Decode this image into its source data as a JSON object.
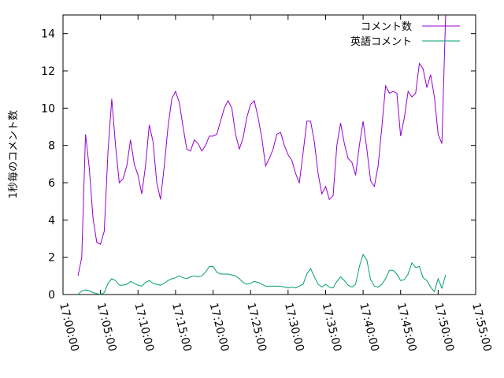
{
  "chart_data": {
    "type": "line",
    "title": "",
    "xlabel": "",
    "ylabel": "1秒毎のコメント数",
    "ylim": [
      0,
      15
    ],
    "xlim": [
      "17:00:00",
      "17:55:00"
    ],
    "yticks": [
      0,
      2,
      4,
      6,
      8,
      10,
      12,
      14
    ],
    "xticks": [
      "17:00:00",
      "17:05:00",
      "17:10:00",
      "17:15:00",
      "17:20:00",
      "17:25:00",
      "17:30:00",
      "17:35:00",
      "17:40:00",
      "17:45:00",
      "17:50:00",
      "17:55:00"
    ],
    "grid": false,
    "legend_position": "top-right",
    "series": [
      {
        "name": "コメント数",
        "color": "#9400d3",
        "points": [
          [
            "17:02:00",
            1.0
          ],
          [
            "17:02:30",
            2.0
          ],
          [
            "17:03:00",
            8.6
          ],
          [
            "17:03:30",
            6.8
          ],
          [
            "17:04:00",
            4.1
          ],
          [
            "17:04:30",
            2.8
          ],
          [
            "17:05:00",
            2.7
          ],
          [
            "17:05:30",
            3.4
          ],
          [
            "17:06:00",
            7.7
          ],
          [
            "17:06:30",
            10.5
          ],
          [
            "17:07:00",
            8.0
          ],
          [
            "17:07:30",
            6.0
          ],
          [
            "17:08:00",
            6.2
          ],
          [
            "17:08:30",
            6.9
          ],
          [
            "17:09:00",
            8.3
          ],
          [
            "17:09:30",
            7.0
          ],
          [
            "17:10:00",
            6.4
          ],
          [
            "17:10:30",
            5.4
          ],
          [
            "17:11:00",
            6.9
          ],
          [
            "17:11:30",
            9.1
          ],
          [
            "17:12:00",
            8.2
          ],
          [
            "17:12:30",
            6.0
          ],
          [
            "17:13:00",
            5.1
          ],
          [
            "17:13:30",
            6.9
          ],
          [
            "17:14:00",
            9.0
          ],
          [
            "17:14:30",
            10.5
          ],
          [
            "17:15:00",
            10.9
          ],
          [
            "17:15:30",
            10.3
          ],
          [
            "17:16:00",
            9.0
          ],
          [
            "17:16:30",
            7.8
          ],
          [
            "17:17:00",
            7.7
          ],
          [
            "17:17:30",
            8.3
          ],
          [
            "17:18:00",
            8.1
          ],
          [
            "17:18:30",
            7.7
          ],
          [
            "17:19:00",
            8.0
          ],
          [
            "17:19:30",
            8.5
          ],
          [
            "17:20:00",
            8.5
          ],
          [
            "17:20:30",
            8.6
          ],
          [
            "17:21:00",
            9.3
          ],
          [
            "17:21:30",
            10.0
          ],
          [
            "17:22:00",
            10.4
          ],
          [
            "17:22:30",
            10.0
          ],
          [
            "17:23:00",
            8.6
          ],
          [
            "17:23:30",
            7.8
          ],
          [
            "17:24:00",
            8.4
          ],
          [
            "17:24:30",
            9.5
          ],
          [
            "17:25:00",
            10.2
          ],
          [
            "17:25:30",
            10.4
          ],
          [
            "17:26:00",
            9.5
          ],
          [
            "17:26:30",
            8.4
          ],
          [
            "17:27:00",
            6.9
          ],
          [
            "17:27:30",
            7.3
          ],
          [
            "17:28:00",
            7.8
          ],
          [
            "17:28:30",
            8.6
          ],
          [
            "17:29:00",
            8.7
          ],
          [
            "17:29:30",
            8.0
          ],
          [
            "17:30:00",
            7.5
          ],
          [
            "17:30:30",
            7.2
          ],
          [
            "17:31:00",
            6.5
          ],
          [
            "17:31:30",
            6.0
          ],
          [
            "17:32:00",
            7.6
          ],
          [
            "17:32:30",
            9.3
          ],
          [
            "17:33:00",
            9.3
          ],
          [
            "17:33:30",
            8.2
          ],
          [
            "17:34:00",
            6.5
          ],
          [
            "17:34:30",
            5.4
          ],
          [
            "17:35:00",
            5.8
          ],
          [
            "17:35:30",
            5.1
          ],
          [
            "17:36:00",
            5.3
          ],
          [
            "17:36:30",
            8.0
          ],
          [
            "17:37:00",
            9.2
          ],
          [
            "17:37:30",
            8.1
          ],
          [
            "17:38:00",
            7.3
          ],
          [
            "17:38:30",
            7.1
          ],
          [
            "17:39:00",
            6.4
          ],
          [
            "17:39:30",
            8.0
          ],
          [
            "17:40:00",
            9.3
          ],
          [
            "17:40:30",
            7.8
          ],
          [
            "17:41:00",
            6.1
          ],
          [
            "17:41:30",
            5.8
          ],
          [
            "17:42:00",
            6.9
          ],
          [
            "17:42:30",
            9.0
          ],
          [
            "17:43:00",
            11.2
          ],
          [
            "17:43:30",
            10.8
          ],
          [
            "17:44:00",
            10.9
          ],
          [
            "17:44:30",
            10.8
          ],
          [
            "17:45:00",
            8.5
          ],
          [
            "17:45:30",
            9.5
          ],
          [
            "17:46:00",
            10.9
          ],
          [
            "17:46:30",
            10.6
          ],
          [
            "17:47:00",
            10.8
          ],
          [
            "17:47:30",
            12.4
          ],
          [
            "17:48:00",
            12.1
          ],
          [
            "17:48:30",
            11.1
          ],
          [
            "17:49:00",
            11.8
          ],
          [
            "17:49:30",
            10.6
          ],
          [
            "17:50:00",
            8.6
          ],
          [
            "17:50:30",
            8.1
          ],
          [
            "17:51:00",
            15.0
          ]
        ]
      },
      {
        "name": "英語コメント",
        "color": "#009e73",
        "points": [
          [
            "17:02:00",
            0.0
          ],
          [
            "17:02:30",
            0.2
          ],
          [
            "17:03:00",
            0.25
          ],
          [
            "17:03:30",
            0.2
          ],
          [
            "17:04:00",
            0.1
          ],
          [
            "17:04:30",
            0.05
          ],
          [
            "17:05:00",
            0.0
          ],
          [
            "17:05:30",
            0.1
          ],
          [
            "17:06:00",
            0.6
          ],
          [
            "17:06:30",
            0.85
          ],
          [
            "17:07:00",
            0.75
          ],
          [
            "17:07:30",
            0.5
          ],
          [
            "17:08:00",
            0.5
          ],
          [
            "17:08:30",
            0.55
          ],
          [
            "17:09:00",
            0.7
          ],
          [
            "17:09:30",
            0.6
          ],
          [
            "17:10:00",
            0.5
          ],
          [
            "17:10:30",
            0.45
          ],
          [
            "17:11:00",
            0.65
          ],
          [
            "17:11:30",
            0.75
          ],
          [
            "17:12:00",
            0.6
          ],
          [
            "17:12:30",
            0.55
          ],
          [
            "17:13:00",
            0.5
          ],
          [
            "17:13:30",
            0.6
          ],
          [
            "17:14:00",
            0.75
          ],
          [
            "17:14:30",
            0.85
          ],
          [
            "17:15:00",
            0.9
          ],
          [
            "17:15:30",
            1.0
          ],
          [
            "17:16:00",
            0.9
          ],
          [
            "17:16:30",
            0.85
          ],
          [
            "17:17:00",
            0.95
          ],
          [
            "17:17:30",
            1.0
          ],
          [
            "17:18:00",
            0.95
          ],
          [
            "17:18:30",
            1.0
          ],
          [
            "17:19:00",
            1.2
          ],
          [
            "17:19:30",
            1.5
          ],
          [
            "17:20:00",
            1.5
          ],
          [
            "17:20:30",
            1.2
          ],
          [
            "17:21:00",
            1.1
          ],
          [
            "17:21:30",
            1.1
          ],
          [
            "17:22:00",
            1.1
          ],
          [
            "17:22:30",
            1.05
          ],
          [
            "17:23:00",
            1.0
          ],
          [
            "17:23:30",
            0.85
          ],
          [
            "17:24:00",
            0.65
          ],
          [
            "17:24:30",
            0.55
          ],
          [
            "17:25:00",
            0.6
          ],
          [
            "17:25:30",
            0.7
          ],
          [
            "17:26:00",
            0.65
          ],
          [
            "17:26:30",
            0.55
          ],
          [
            "17:27:00",
            0.45
          ],
          [
            "17:27:30",
            0.45
          ],
          [
            "17:28:00",
            0.45
          ],
          [
            "17:28:30",
            0.45
          ],
          [
            "17:29:00",
            0.45
          ],
          [
            "17:29:30",
            0.4
          ],
          [
            "17:30:00",
            0.35
          ],
          [
            "17:30:30",
            0.4
          ],
          [
            "17:31:00",
            0.35
          ],
          [
            "17:31:30",
            0.45
          ],
          [
            "17:32:00",
            0.55
          ],
          [
            "17:32:30",
            1.1
          ],
          [
            "17:33:00",
            1.4
          ],
          [
            "17:33:30",
            0.95
          ],
          [
            "17:34:00",
            0.55
          ],
          [
            "17:34:30",
            0.4
          ],
          [
            "17:35:00",
            0.55
          ],
          [
            "17:35:30",
            0.4
          ],
          [
            "17:36:00",
            0.35
          ],
          [
            "17:36:30",
            0.7
          ],
          [
            "17:37:00",
            0.95
          ],
          [
            "17:37:30",
            0.75
          ],
          [
            "17:38:00",
            0.5
          ],
          [
            "17:38:30",
            0.4
          ],
          [
            "17:39:00",
            0.55
          ],
          [
            "17:39:30",
            1.5
          ],
          [
            "17:40:00",
            2.15
          ],
          [
            "17:40:30",
            1.85
          ],
          [
            "17:41:00",
            0.8
          ],
          [
            "17:41:30",
            0.45
          ],
          [
            "17:42:00",
            0.4
          ],
          [
            "17:42:30",
            0.55
          ],
          [
            "17:43:00",
            0.85
          ],
          [
            "17:43:30",
            1.3
          ],
          [
            "17:44:00",
            1.3
          ],
          [
            "17:44:30",
            1.1
          ],
          [
            "17:45:00",
            0.75
          ],
          [
            "17:45:30",
            0.8
          ],
          [
            "17:46:00",
            1.1
          ],
          [
            "17:46:30",
            1.7
          ],
          [
            "17:47:00",
            1.45
          ],
          [
            "17:47:30",
            1.5
          ],
          [
            "17:48:00",
            0.9
          ],
          [
            "17:48:30",
            0.75
          ],
          [
            "17:49:00",
            0.4
          ],
          [
            "17:49:30",
            0.15
          ],
          [
            "17:50:00",
            0.85
          ],
          [
            "17:50:30",
            0.35
          ],
          [
            "17:51:00",
            1.05
          ]
        ]
      }
    ]
  }
}
